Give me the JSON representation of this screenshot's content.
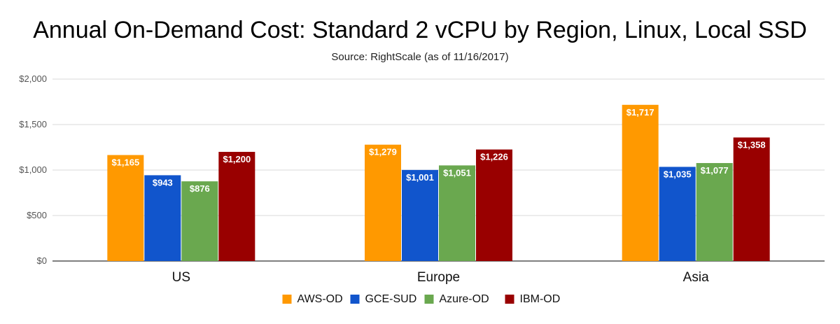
{
  "chart_data": {
    "type": "bar",
    "title": "Annual On-Demand Cost: Standard 2 vCPU by Region, Linux, Local SSD",
    "subtitle": "Source: RightScale (as of 11/16/2017)",
    "xlabel": "",
    "ylabel": "",
    "categories": [
      "US",
      "Europe",
      "Asia"
    ],
    "ylim": [
      0,
      2000
    ],
    "yticks": [
      0,
      500,
      1000,
      1500,
      2000
    ],
    "ytick_labels": [
      "$0",
      "$500",
      "$1,000",
      "$1,500",
      "$2,000"
    ],
    "grid": true,
    "legend_position": "bottom",
    "series": [
      {
        "name": "AWS-OD",
        "color": "#ff9900",
        "values": [
          1165,
          1279,
          1717
        ],
        "labels": [
          "$1,165",
          "$1,279",
          "$1,717"
        ]
      },
      {
        "name": "GCE-SUD",
        "color": "#1155cc",
        "values": [
          943,
          1001,
          1035
        ],
        "labels": [
          "$943",
          "$1,001",
          "$1,035"
        ]
      },
      {
        "name": "Azure-OD",
        "color": "#6aa84f",
        "values": [
          876,
          1051,
          1077
        ],
        "labels": [
          "$876",
          "$1,051",
          "$1,077"
        ]
      },
      {
        "name": "IBM-OD",
        "color": "#990000",
        "values": [
          1200,
          1226,
          1358
        ],
        "labels": [
          "$1,200",
          "$1,226",
          "$1,358"
        ]
      }
    ]
  }
}
